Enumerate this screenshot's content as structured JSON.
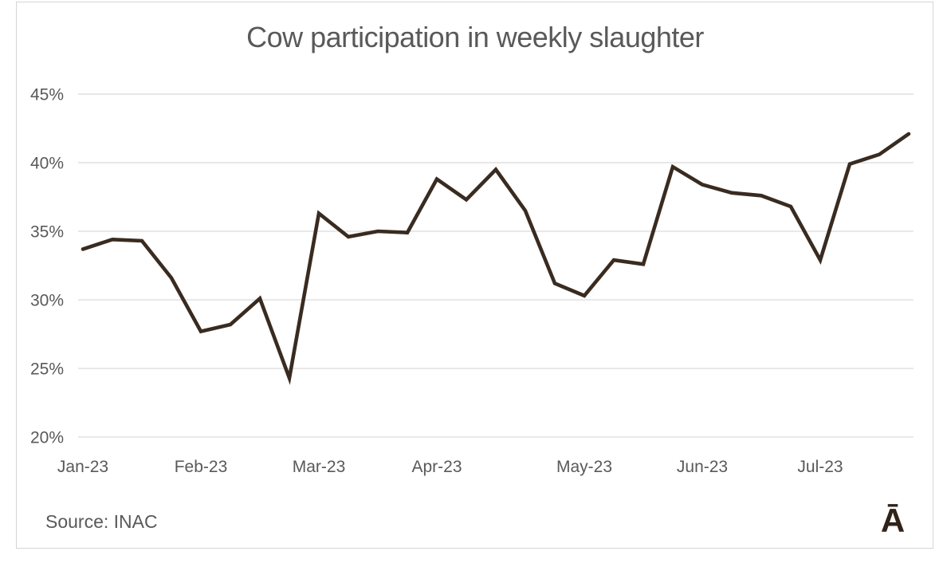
{
  "title": "Cow participation in weekly slaughter",
  "footer": {
    "source_label": "Source: INAC",
    "logo_glyph": "Ā"
  },
  "colors": {
    "line": "#3a2b20",
    "grid": "#d9d9d9",
    "text": "#595959",
    "card_border": "#d5d5d5",
    "logo": "#30231a",
    "background": "#ffffff"
  },
  "chart_data": {
    "type": "line",
    "title": "Cow participation in weekly slaughter",
    "series_name": "Cow participation in weekly slaughter (%)",
    "x_unit": "week",
    "values": [
      33.7,
      34.4,
      34.3,
      31.6,
      27.7,
      28.2,
      30.1,
      24.3,
      36.3,
      34.6,
      35.0,
      34.9,
      38.8,
      37.3,
      39.5,
      36.5,
      31.2,
      30.3,
      32.9,
      32.6,
      39.7,
      38.4,
      37.8,
      37.6,
      36.8,
      32.9,
      39.9,
      40.6,
      42.1
    ],
    "x_tick_labels": [
      {
        "label": "Jan-23",
        "index": 0
      },
      {
        "label": "Feb-23",
        "index": 4
      },
      {
        "label": "Mar-23",
        "index": 8
      },
      {
        "label": "Apr-23",
        "index": 12
      },
      {
        "label": "May-23",
        "index": 17
      },
      {
        "label": "Jun-23",
        "index": 21
      },
      {
        "label": "Jul-23",
        "index": 25
      }
    ],
    "y_ticks": [
      {
        "label": "45%",
        "value": 45
      },
      {
        "label": "40%",
        "value": 40
      },
      {
        "label": "35%",
        "value": 35
      },
      {
        "label": "30%",
        "value": 30
      },
      {
        "label": "25%",
        "value": 25
      },
      {
        "label": "20%",
        "value": 20
      }
    ],
    "ylim": [
      20,
      45
    ],
    "grid": "horizontal",
    "legend": "none",
    "xlabel": "",
    "ylabel": ""
  }
}
